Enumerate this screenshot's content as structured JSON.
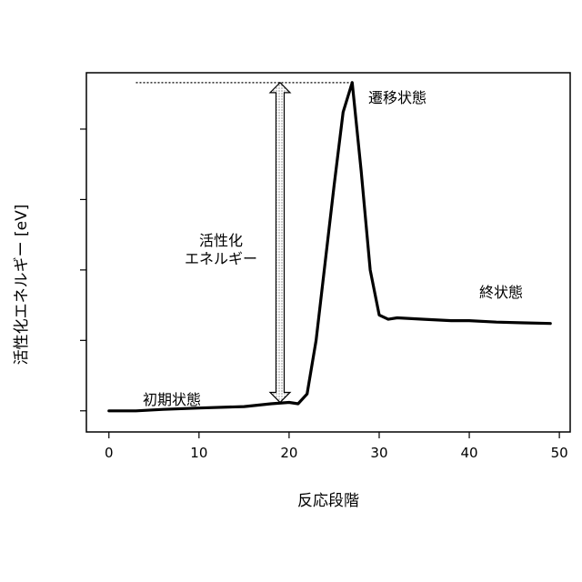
{
  "chart_data": {
    "type": "line",
    "title": "",
    "xlabel": "反応段階",
    "ylabel": "活性化エネルギー [eV]",
    "xlim": [
      -2.5,
      51.2
    ],
    "ylim": [
      -0.15,
      2.4
    ],
    "x_ticks": [
      0,
      10,
      20,
      30,
      40,
      50
    ],
    "x_tick_labels": [
      "0",
      "10",
      "20",
      "30",
      "40",
      "50"
    ],
    "y_ticks": [
      0,
      0.5,
      1.0,
      1.5,
      2.0
    ],
    "y_tick_labels_shown": false,
    "grid": false,
    "series": [
      {
        "x": [
          0,
          3,
          6,
          10,
          15,
          18,
          20,
          21,
          22,
          23,
          24,
          25,
          26,
          27,
          28,
          29,
          30,
          31,
          32,
          35,
          38,
          40,
          43,
          46,
          49
        ],
        "y": [
          0.0,
          0.0,
          0.01,
          0.02,
          0.03,
          0.05,
          0.06,
          0.05,
          0.12,
          0.5,
          1.05,
          1.6,
          2.12,
          2.33,
          1.7,
          1.0,
          0.68,
          0.65,
          0.66,
          0.65,
          0.64,
          0.64,
          0.63,
          0.625,
          0.62
        ]
      }
    ],
    "annotations": {
      "transition_state": "遷移状態",
      "initial_state": "初期状態",
      "final_state": "終状態",
      "activation_energy_line1": "活性化",
      "activation_energy_line2": "エネルギー"
    },
    "activation_arrow": {
      "x": 19,
      "y_from": 0.06,
      "y_to": 2.33
    },
    "reference_line": {
      "x_from": 3,
      "x_to": 27,
      "y": 2.33
    }
  }
}
